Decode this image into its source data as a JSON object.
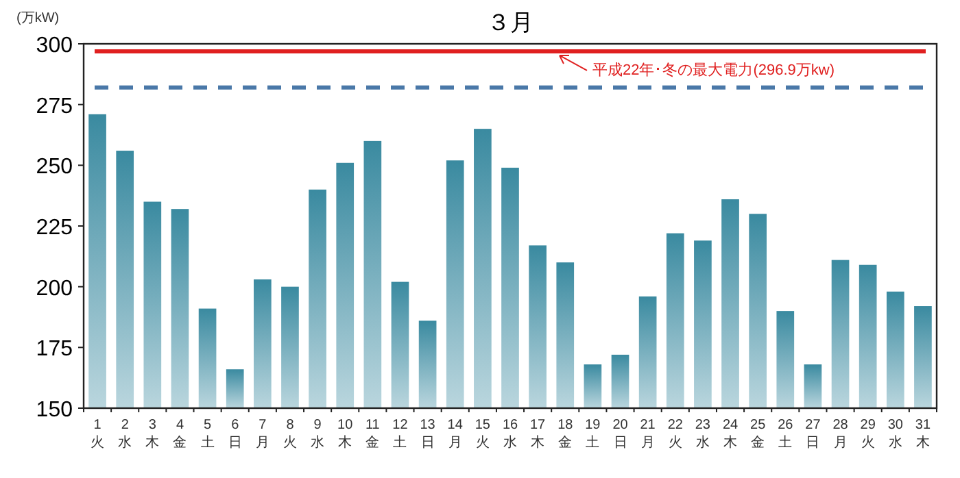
{
  "chart_data": {
    "type": "bar",
    "title": "３月",
    "ylabel": "(万kW)",
    "categories": [
      "1\n火",
      "2\n水",
      "3\n木",
      "4\n金",
      "5\n土",
      "6\n日",
      "7\n月",
      "8\n火",
      "9\n水",
      "10\n木",
      "11\n金",
      "12\n土",
      "13\n日",
      "14\n月",
      "15\n火",
      "16\n水",
      "17\n木",
      "18\n金",
      "19\n土",
      "20\n日",
      "21\n月",
      "22\n火",
      "23\n水",
      "24\n木",
      "25\n金",
      "26\n土",
      "27\n日",
      "28\n月",
      "29\n火",
      "30\n水",
      "31\n木"
    ],
    "series": [
      {
        "color": "#3a8aa0",
        "values": [
          271,
          256,
          235,
          232,
          191,
          166,
          203,
          200,
          240,
          251,
          260,
          202,
          186,
          252,
          265,
          249,
          217,
          210,
          168,
          172,
          196,
          222,
          219,
          236,
          230,
          190,
          168,
          211,
          209,
          198,
          192
        ]
      }
    ],
    "ylim": [
      150,
      300
    ],
    "yticks": [
      150,
      175,
      200,
      225,
      250,
      275,
      300
    ],
    "ref_lines": [
      {
        "axis": "y",
        "value": 296.9,
        "label": "平成22年･冬の最大電力(296.9万kw)",
        "color": "#e02020",
        "line_style": "solid"
      },
      {
        "axis": "y",
        "value": 282,
        "color": "#4a78a8",
        "line_style": "dashed"
      }
    ],
    "grid": false
  }
}
